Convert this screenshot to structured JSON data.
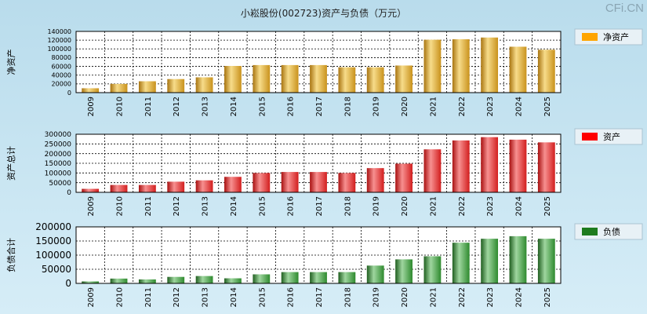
{
  "page": {
    "title": "小崧股份(002723)资产与负债（万元）",
    "brand": "CFi.CN"
  },
  "colors": {
    "equity": "#f5a623",
    "assets": "#ff0000",
    "liabilities": "#1c8a1c",
    "background_top": "#b9dcec",
    "plot_bg": "#ffffff"
  },
  "chart_data": [
    {
      "type": "bar",
      "id": "equity",
      "ylabel": "净资产",
      "legend": "净资产",
      "categories": [
        "2009",
        "2010",
        "2011",
        "2012",
        "2013",
        "2014",
        "2015",
        "2016",
        "2017",
        "2018",
        "2019",
        "2020",
        "2021",
        "2022",
        "2023",
        "2024",
        "2025"
      ],
      "values": [
        10000,
        20000,
        26000,
        31000,
        35000,
        61000,
        63000,
        63000,
        63000,
        58000,
        58000,
        62000,
        121000,
        122000,
        126000,
        105000,
        98000
      ],
      "yticks": [
        0,
        20000,
        40000,
        60000,
        80000,
        100000,
        120000,
        140000
      ],
      "ylim": [
        0,
        140000
      ]
    },
    {
      "type": "bar",
      "id": "assets",
      "ylabel": "资产总计",
      "legend": "资产",
      "categories": [
        "2009",
        "2010",
        "2011",
        "2012",
        "2013",
        "2014",
        "2015",
        "2016",
        "2017",
        "2018",
        "2019",
        "2020",
        "2021",
        "2022",
        "2023",
        "2024",
        "2025"
      ],
      "values": [
        18000,
        38000,
        38000,
        55000,
        62000,
        80000,
        100000,
        105000,
        105000,
        100000,
        125000,
        148000,
        222000,
        268000,
        285000,
        272000,
        258000
      ],
      "yticks": [
        0,
        50000,
        100000,
        150000,
        200000,
        250000,
        300000
      ],
      "ylim": [
        0,
        300000
      ]
    },
    {
      "type": "bar",
      "id": "liabilities",
      "ylabel": "负债合计",
      "legend": "负债",
      "categories": [
        "2009",
        "2010",
        "2011",
        "2012",
        "2013",
        "2014",
        "2015",
        "2016",
        "2017",
        "2018",
        "2019",
        "2020",
        "2021",
        "2022",
        "2023",
        "2024",
        "2025"
      ],
      "values": [
        7000,
        17000,
        14000,
        23000,
        26000,
        18000,
        32000,
        40000,
        40000,
        40000,
        63000,
        85000,
        96000,
        144000,
        158000,
        167000,
        158000
      ],
      "yticks": [
        0,
        50000,
        100000,
        150000,
        200000
      ],
      "ylim": [
        0,
        200000
      ]
    }
  ]
}
